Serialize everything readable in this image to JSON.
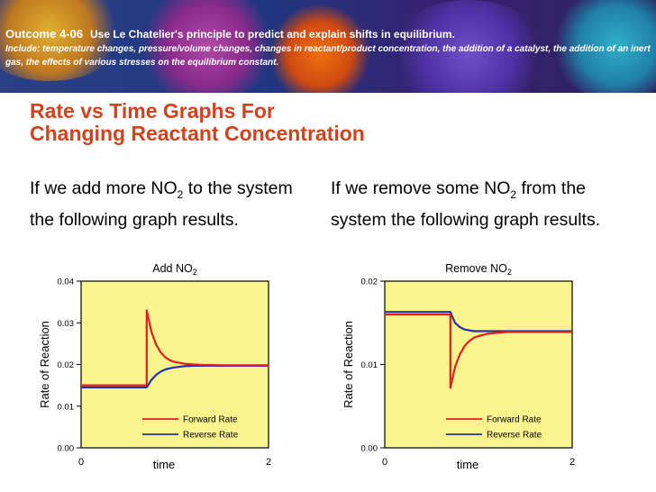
{
  "banner": {
    "outcome_code": "Outcome 4-06",
    "outcome_text": "Use Le Chatelier's principle to predict and explain shifts in equilibrium.",
    "include_text": "Include: temperature changes, pressure/volume changes, changes in reactant/product concentration, the addition of a catalyst, the addition of an inert gas, the effects of various stresses on the equilibrium constant."
  },
  "title": {
    "line1": "Rate vs Time Graphs For",
    "line2": "Changing Reactant Concentration"
  },
  "left_text": {
    "before": "If we add more NO",
    "sub": "2",
    "after": " to the system the following graph results."
  },
  "right_text": {
    "before": "If we remove some NO",
    "sub": "2",
    "after": " from the system the following graph results."
  },
  "colors": {
    "title": "#d1421e",
    "plot_bg": "#fcf58e",
    "forward": "#e0201e",
    "reverse": "#2233aa"
  },
  "chart_data": [
    {
      "type": "line",
      "title": "Add NO",
      "title_sub": "2",
      "xlabel": "time",
      "ylabel": "Rate of Reaction",
      "xlim": [
        0,
        2
      ],
      "ylim": [
        0,
        0.04
      ],
      "x_ticks": [
        "0",
        "2"
      ],
      "y_ticks": [
        {
          "value": 0,
          "label": "0.00"
        },
        {
          "value": 0.01,
          "label": "0.01"
        },
        {
          "value": 0.02,
          "label": "0.02"
        },
        {
          "value": 0.03,
          "label": "0.03"
        },
        {
          "value": 0.04,
          "label": "0.04"
        }
      ],
      "series": [
        {
          "name": "Forward Rate",
          "color": "#e0201e",
          "x": [
            0,
            0.7,
            0.7,
            0.75,
            0.8,
            0.85,
            0.9,
            0.95,
            1.0,
            1.1,
            1.2,
            1.3,
            1.5,
            2.0
          ],
          "y": [
            0.015,
            0.015,
            0.033,
            0.0279,
            0.0248,
            0.0229,
            0.0217,
            0.021,
            0.0206,
            0.0202,
            0.02,
            0.0199,
            0.0198,
            0.0198
          ]
        },
        {
          "name": "Reverse Rate",
          "color": "#2233aa",
          "x": [
            0,
            0.7,
            0.75,
            0.8,
            0.85,
            0.9,
            0.95,
            1.0,
            1.1,
            1.2,
            1.3,
            1.5,
            2.0
          ],
          "y": [
            0.0145,
            0.0145,
            0.0163,
            0.0175,
            0.0183,
            0.0188,
            0.0191,
            0.0193,
            0.0196,
            0.0197,
            0.0197,
            0.0197,
            0.0197
          ]
        }
      ]
    },
    {
      "type": "line",
      "title": "Remove NO",
      "title_sub": "2",
      "xlabel": "time",
      "ylabel": "Rate of Reaction",
      "xlim": [
        0,
        2
      ],
      "ylim": [
        0,
        0.02
      ],
      "x_ticks": [
        "0",
        "2"
      ],
      "y_ticks": [
        {
          "value": 0,
          "label": "0.00"
        },
        {
          "value": 0.01,
          "label": "0.01"
        },
        {
          "value": 0.02,
          "label": "0.02"
        }
      ],
      "series": [
        {
          "name": "Forward Rate",
          "color": "#e0201e",
          "x": [
            0,
            0.7,
            0.7,
            0.75,
            0.8,
            0.85,
            0.9,
            0.95,
            1.0,
            1.1,
            1.2,
            1.3,
            1.5,
            2.0
          ],
          "y": [
            0.016,
            0.016,
            0.0072,
            0.0097,
            0.0112,
            0.0122,
            0.0128,
            0.0132,
            0.0134,
            0.0137,
            0.0138,
            0.0139,
            0.0139,
            0.0139
          ]
        },
        {
          "name": "Reverse Rate",
          "color": "#2233aa",
          "x": [
            0,
            0.7,
            0.75,
            0.8,
            0.85,
            0.9,
            0.95,
            1.0,
            1.1,
            1.2,
            1.3,
            1.5,
            2.0
          ],
          "y": [
            0.0163,
            0.0163,
            0.015,
            0.0145,
            0.0142,
            0.0141,
            0.014,
            0.014,
            0.014,
            0.014,
            0.014,
            0.014,
            0.014
          ]
        }
      ]
    }
  ]
}
